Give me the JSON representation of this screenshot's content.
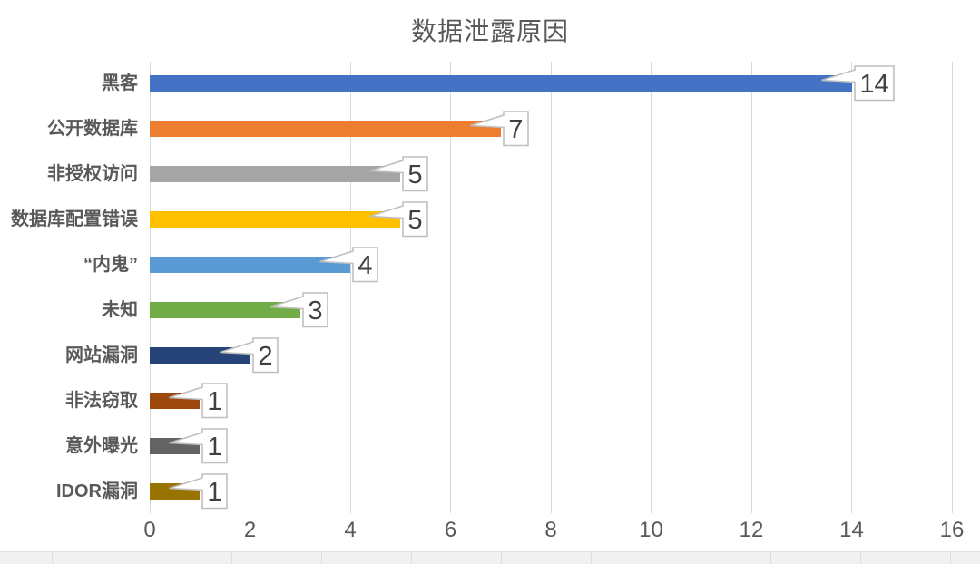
{
  "chart_data": {
    "type": "bar",
    "orientation": "horizontal",
    "title": "数据泄露原因",
    "categories": [
      "黑客",
      "公开数据库",
      "非授权访问",
      "数据库配置错误",
      "“内鬼”",
      "未知",
      "网站漏洞",
      "非法窃取",
      "意外曝光",
      "IDOR漏洞"
    ],
    "values": [
      14,
      7,
      5,
      5,
      4,
      3,
      2,
      1,
      1,
      1
    ],
    "colors": [
      "#4472C4",
      "#ED7D31",
      "#A5A5A5",
      "#FFC000",
      "#5B9BD5",
      "#70AD47",
      "#264478",
      "#9E480E",
      "#636363",
      "#997300"
    ],
    "data_labels": [
      14,
      7,
      5,
      5,
      4,
      3,
      2,
      1,
      1,
      1
    ],
    "data_label_style": "callout",
    "xlabel": "",
    "ylabel": "",
    "xlim": [
      0,
      16
    ],
    "x_ticks": [
      0,
      2,
      4,
      6,
      8,
      10,
      12,
      14,
      16
    ],
    "grid": true,
    "legend": "none"
  },
  "style": {
    "title_color": "#595959",
    "label_color": "#595959",
    "tick_color": "#595959",
    "gridline_color": "#d9d9d9",
    "callout_border_color": "#bfbfbf",
    "callout_text_color": "#404040",
    "background": "#ffffff"
  }
}
